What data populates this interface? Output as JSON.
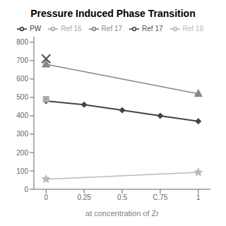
{
  "chart_data": {
    "type": "line",
    "title": "Pressure Induced Phase Transition",
    "x_label": "at concentration of Zr",
    "xlim": [
      -0.08,
      1.08
    ],
    "xticks": [
      0,
      0.25,
      0.5,
      {
        "value": 0.75,
        "label": "C.75"
      },
      1
    ],
    "ylim": [
      0,
      830
    ],
    "yticks": [
      0,
      100,
      200,
      300,
      400,
      500,
      600,
      700,
      800
    ],
    "grid": false,
    "legend": "upper right",
    "series": [
      {
        "name": "PW",
        "color": "#444444",
        "marker": "diamond",
        "x": [
          0,
          0.25,
          0.5,
          0.75,
          1
        ],
        "values": [
          480,
          460,
          430,
          400,
          370
        ]
      },
      {
        "name": "Ref 16",
        "color": "#aaaaaa",
        "marker": "square",
        "x": [
          0
        ],
        "values": [
          490
        ]
      },
      {
        "name": "Ref 17",
        "color": "#888888",
        "marker": "triangle",
        "x": [
          0,
          1
        ],
        "values": [
          680,
          520
        ]
      },
      {
        "name": "Ref 17",
        "color": "#555555",
        "marker": "cross",
        "x": [
          0
        ],
        "values": [
          710
        ]
      },
      {
        "name": "Ref 18",
        "color": "#bbbbbb",
        "marker": "star",
        "x": [
          0,
          1
        ],
        "values": [
          55,
          92
        ]
      }
    ]
  }
}
